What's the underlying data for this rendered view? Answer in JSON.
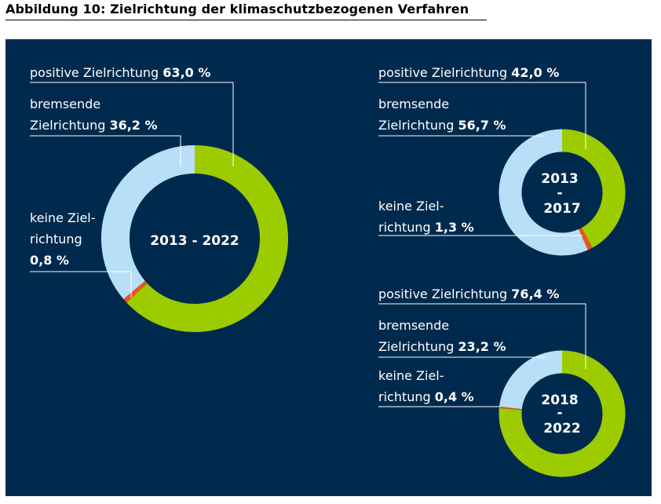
{
  "title": "Abbildung 10: Zielrichtung der klimaschutzbezogenen Verfahren",
  "colors": {
    "background": "#002a4d",
    "positive": "#9ccc00",
    "bremsend": "#b9def7",
    "keine": "#e8561e"
  },
  "chart_data": [
    {
      "type": "pie",
      "variant": "donut",
      "center_label": [
        "2013 - 2022"
      ],
      "labels": {
        "positive": [
          "positive Zielrichtung ",
          "63,0 %"
        ],
        "bremsend": [
          "bremsende",
          "Zielrichtung ",
          "36,2 %"
        ],
        "keine": [
          "keine Ziel-",
          "richtung",
          "0,8 %"
        ]
      },
      "slices": [
        {
          "key": "positive",
          "label": "positive Zielrichtung",
          "value": 63.0
        },
        {
          "key": "keine",
          "label": "keine Zielrichtung",
          "value": 0.8
        },
        {
          "key": "bremsend",
          "label": "bremsende Zielrichtung",
          "value": 36.2
        }
      ]
    },
    {
      "type": "pie",
      "variant": "donut",
      "center_label": [
        "2013",
        "-",
        "2017"
      ],
      "labels": {
        "positive": [
          "positive Zielrichtung ",
          "42,0 %"
        ],
        "bremsend": [
          "bremsende",
          "Zielrichtung ",
          "56,7 %"
        ],
        "keine": [
          "keine Ziel-",
          "richtung ",
          "1,3 %"
        ]
      },
      "slices": [
        {
          "key": "positive",
          "label": "positive Zielrichtung",
          "value": 42.0
        },
        {
          "key": "keine",
          "label": "keine Zielrichtung",
          "value": 1.3
        },
        {
          "key": "bremsend",
          "label": "bremsende Zielrichtung",
          "value": 56.7
        }
      ]
    },
    {
      "type": "pie",
      "variant": "donut",
      "center_label": [
        "2018",
        "-",
        "2022"
      ],
      "labels": {
        "positive": [
          "positive Zielrichtung ",
          "76,4 %"
        ],
        "bremsend": [
          "bremsende",
          "Zielrichtung ",
          "23,2 %"
        ],
        "keine": [
          "keine Ziel-",
          "richtung ",
          "0,4 %"
        ]
      },
      "slices": [
        {
          "key": "positive",
          "label": "positive Zielrichtung",
          "value": 76.4
        },
        {
          "key": "keine",
          "label": "keine Zielrichtung",
          "value": 0.4
        },
        {
          "key": "bremsend",
          "label": "bremsende Zielrichtung",
          "value": 23.2
        }
      ]
    }
  ]
}
